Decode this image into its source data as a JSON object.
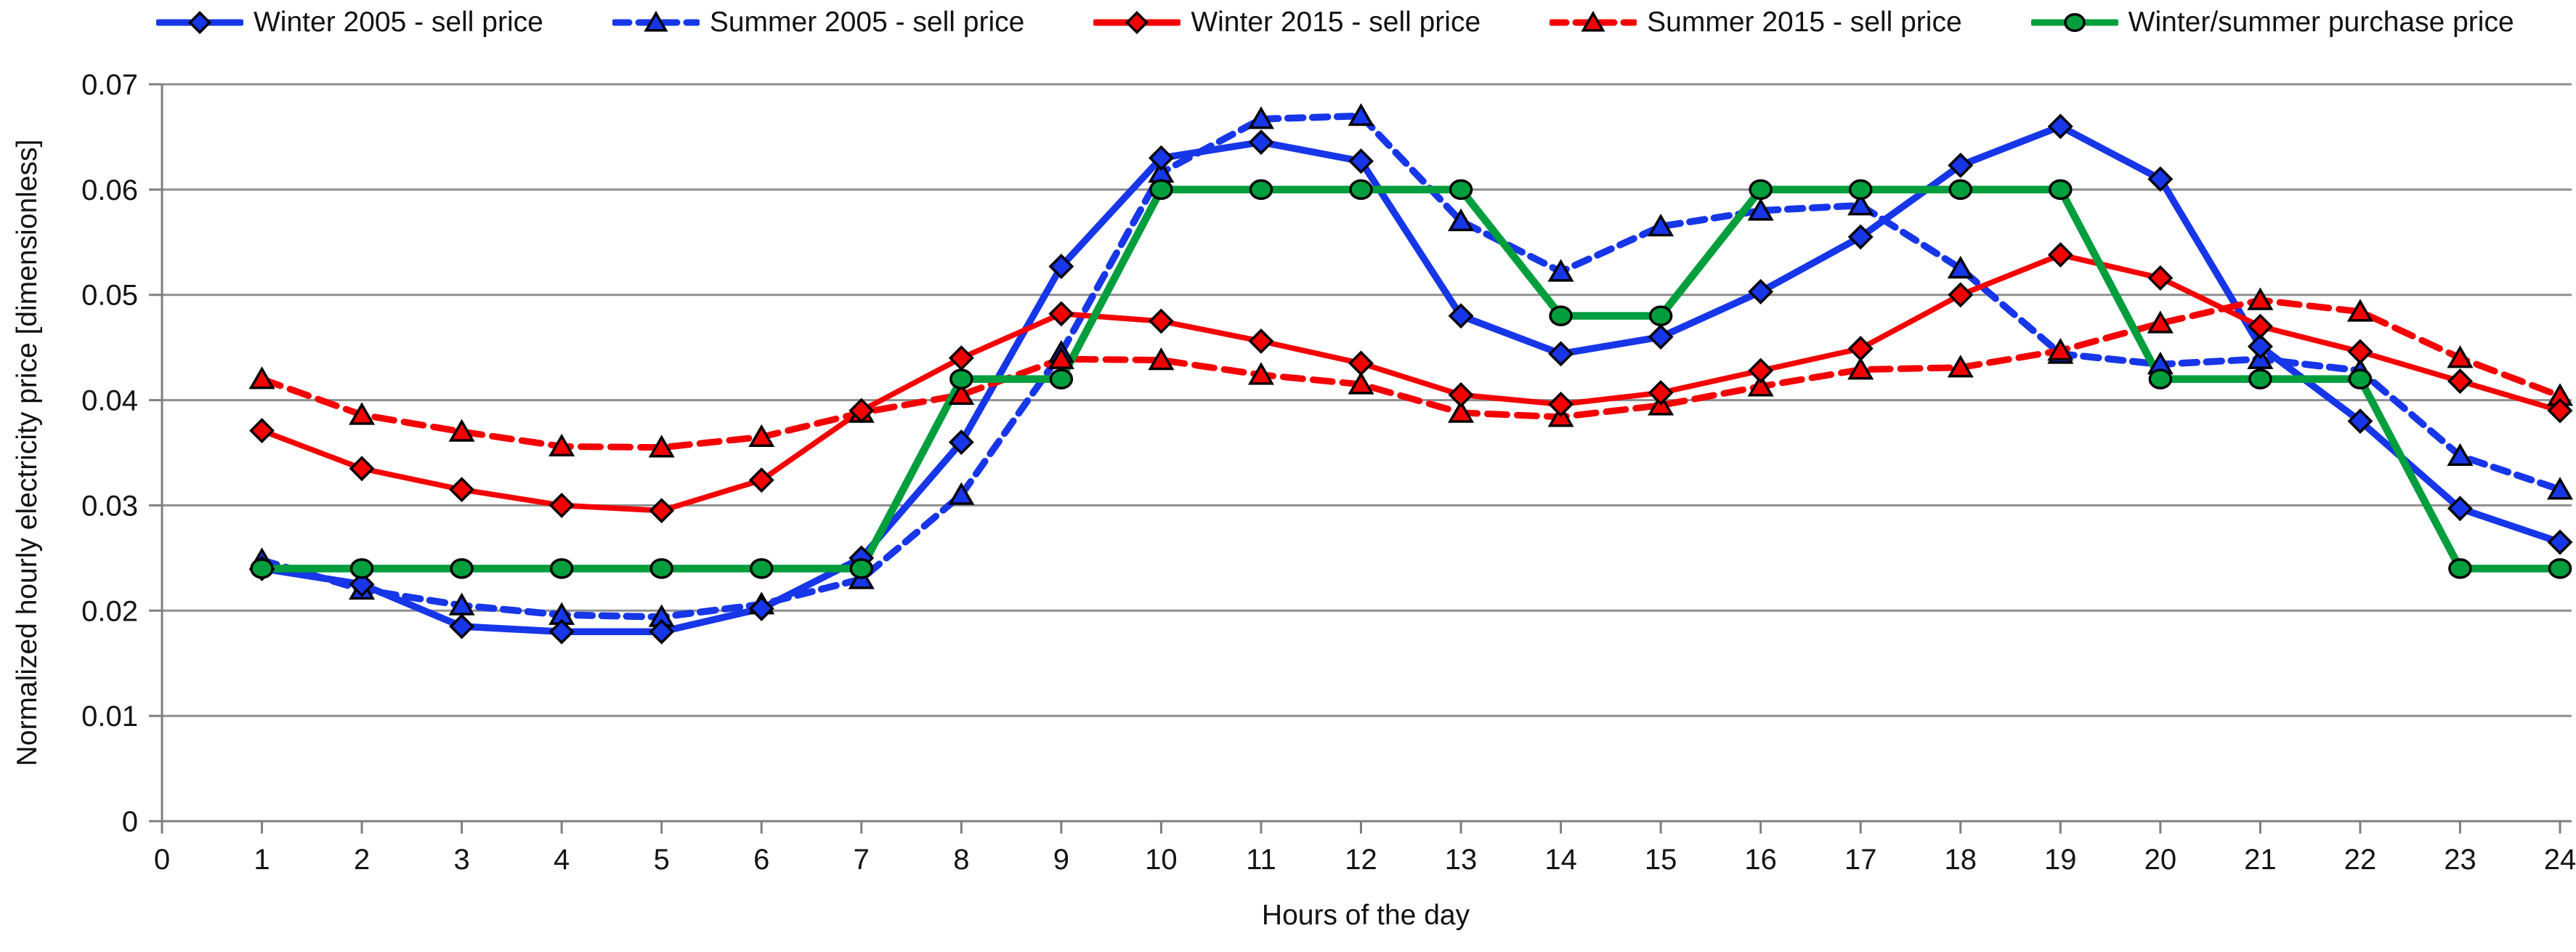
{
  "chart_data": {
    "type": "line",
    "title": "",
    "xlabel": "Hours of the day",
    "ylabel": "Normalized hourly electricity price [dimensionless]",
    "x": [
      1,
      2,
      3,
      4,
      5,
      6,
      7,
      8,
      9,
      10,
      11,
      12,
      13,
      14,
      15,
      16,
      17,
      18,
      19,
      20,
      21,
      22,
      23,
      24
    ],
    "xlim": [
      0,
      24
    ],
    "ylim": [
      0,
      0.07
    ],
    "grid": "horizontal-only",
    "legend_position": "top",
    "xtick_labels": [
      "0",
      "1",
      "2",
      "3",
      "4",
      "5",
      "6",
      "7",
      "8",
      "9",
      "10",
      "11",
      "12",
      "13",
      "14",
      "15",
      "16",
      "17",
      "18",
      "19",
      "20",
      "21",
      "22",
      "23",
      "24"
    ],
    "ytick_values": [
      0,
      0.01,
      0.02,
      0.03,
      0.04,
      0.05,
      0.06,
      0.07
    ],
    "ytick_labels": [
      "0",
      "0.01",
      "0.02",
      "0.03",
      "0.04",
      "0.05",
      "0.06",
      "0.07"
    ],
    "series": [
      {
        "name": "Winter 2005 - sell price",
        "color": "#1636E8",
        "style": "solid",
        "marker": "diamond",
        "values": [
          0.024,
          0.0225,
          0.0185,
          0.018,
          0.018,
          0.0202,
          0.025,
          0.036,
          0.0527,
          0.063,
          0.0645,
          0.0627,
          0.048,
          0.0444,
          0.046,
          0.0503,
          0.0555,
          0.0623,
          0.066,
          0.061,
          0.0451,
          0.038,
          0.0297,
          0.0265
        ]
      },
      {
        "name": "Summer 2005 - sell price",
        "color": "#1636E8",
        "style": "dashed",
        "marker": "triangle",
        "values": [
          0.0248,
          0.022,
          0.0205,
          0.0196,
          0.0194,
          0.0206,
          0.023,
          0.031,
          0.0445,
          0.0616,
          0.0667,
          0.067,
          0.057,
          0.0522,
          0.0565,
          0.058,
          0.0585,
          0.0525,
          0.0444,
          0.0434,
          0.0439,
          0.0428,
          0.0347,
          0.0315
        ]
      },
      {
        "name": "Winter 2015 - sell price",
        "color": "#F40000",
        "style": "solid",
        "marker": "diamond",
        "values": [
          0.0371,
          0.0335,
          0.0315,
          0.03,
          0.0295,
          0.0324,
          0.039,
          0.044,
          0.0482,
          0.0475,
          0.0456,
          0.0435,
          0.0405,
          0.0396,
          0.0407,
          0.0428,
          0.0449,
          0.05,
          0.0538,
          0.0516,
          0.047,
          0.0446,
          0.0418,
          0.039
        ]
      },
      {
        "name": "Summer 2015 - sell price",
        "color": "#F40000",
        "style": "dashed",
        "marker": "triangle",
        "values": [
          0.042,
          0.0386,
          0.037,
          0.0356,
          0.0355,
          0.0365,
          0.0388,
          0.0405,
          0.0439,
          0.0438,
          0.0424,
          0.0415,
          0.0388,
          0.0384,
          0.0395,
          0.0413,
          0.0429,
          0.0431,
          0.0447,
          0.0473,
          0.0495,
          0.0484,
          0.044,
          0.0404
        ]
      },
      {
        "name": "Winter/summer purchase price",
        "color": "#009E3C",
        "style": "solid",
        "marker": "circle",
        "values": [
          0.024,
          0.024,
          0.024,
          0.024,
          0.024,
          0.024,
          0.024,
          0.042,
          0.042,
          0.06,
          0.06,
          0.06,
          0.06,
          0.048,
          0.048,
          0.06,
          0.06,
          0.06,
          0.06,
          0.042,
          0.042,
          0.042,
          0.024,
          0.024
        ]
      }
    ],
    "colors": {
      "blue": "#1636E8",
      "red": "#F40000",
      "green": "#009E3C",
      "gridline": "#8E8E8E",
      "axis": "#7F7F7F",
      "text": "#141414"
    }
  }
}
